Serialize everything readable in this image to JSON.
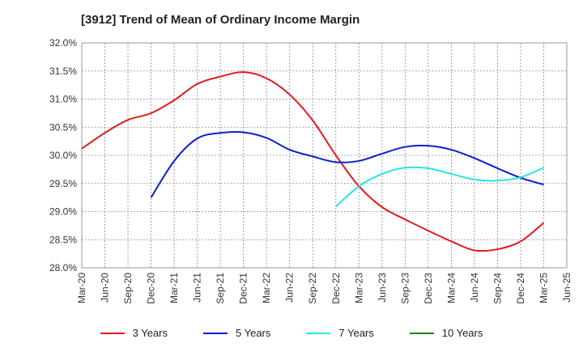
{
  "chart_data": {
    "type": "line",
    "title": "[3912]  Trend of Mean of Ordinary Income Margin",
    "xlabel": "",
    "ylabel": "",
    "x_ticks": [
      "Mar-20",
      "Jun-20",
      "Sep-20",
      "Dec-20",
      "Mar-21",
      "Jun-21",
      "Sep-21",
      "Dec-21",
      "Mar-22",
      "Jun-22",
      "Sep-22",
      "Dec-22",
      "Mar-23",
      "Jun-23",
      "Sep-23",
      "Dec-23",
      "Mar-24",
      "Jun-24",
      "Sep-24",
      "Dec-24",
      "Mar-25",
      "Jun-25"
    ],
    "y_ticks": [
      "28.0%",
      "28.5%",
      "29.0%",
      "29.5%",
      "30.0%",
      "30.5%",
      "31.0%",
      "31.5%",
      "32.0%"
    ],
    "ylim": [
      28.0,
      32.0
    ],
    "grid": true,
    "legend_position": "bottom",
    "series": [
      {
        "name": "3 Years",
        "color": "#e31a1c",
        "x": [
          "Mar-20",
          "Jun-20",
          "Sep-20",
          "Dec-20",
          "Mar-21",
          "Jun-21",
          "Sep-21",
          "Dec-21",
          "Mar-22",
          "Jun-22",
          "Sep-22",
          "Dec-22",
          "Mar-23",
          "Jun-23",
          "Sep-23",
          "Dec-23",
          "Mar-24",
          "Jun-24",
          "Sep-24",
          "Dec-24",
          "Mar-25"
        ],
        "values": [
          30.12,
          30.4,
          30.63,
          30.75,
          30.98,
          31.27,
          31.4,
          31.48,
          31.37,
          31.08,
          30.62,
          30.0,
          29.45,
          29.08,
          28.86,
          28.66,
          28.47,
          28.31,
          28.33,
          28.47,
          28.8
        ]
      },
      {
        "name": "5 Years",
        "color": "#0a1fcf",
        "x": [
          "Dec-20",
          "Mar-21",
          "Jun-21",
          "Sep-21",
          "Dec-21",
          "Mar-22",
          "Jun-22",
          "Sep-22",
          "Dec-22",
          "Mar-23",
          "Jun-23",
          "Sep-23",
          "Dec-23",
          "Mar-24",
          "Jun-24",
          "Sep-24",
          "Dec-24",
          "Mar-25"
        ],
        "values": [
          29.25,
          29.9,
          30.3,
          30.4,
          30.41,
          30.31,
          30.1,
          29.98,
          29.88,
          29.9,
          30.03,
          30.15,
          30.17,
          30.1,
          29.95,
          29.77,
          29.6,
          29.48
        ]
      },
      {
        "name": "7 Years",
        "color": "#22e6e6",
        "x": [
          "Dec-22",
          "Mar-23",
          "Jun-23",
          "Sep-23",
          "Dec-23",
          "Mar-24",
          "Jun-24",
          "Sep-24",
          "Dec-24",
          "Mar-25"
        ],
        "values": [
          29.09,
          29.45,
          29.67,
          29.78,
          29.77,
          29.67,
          29.57,
          29.55,
          29.61,
          29.78
        ]
      },
      {
        "name": "10 Years",
        "color": "#1f7d1f",
        "x": [],
        "values": []
      }
    ]
  }
}
